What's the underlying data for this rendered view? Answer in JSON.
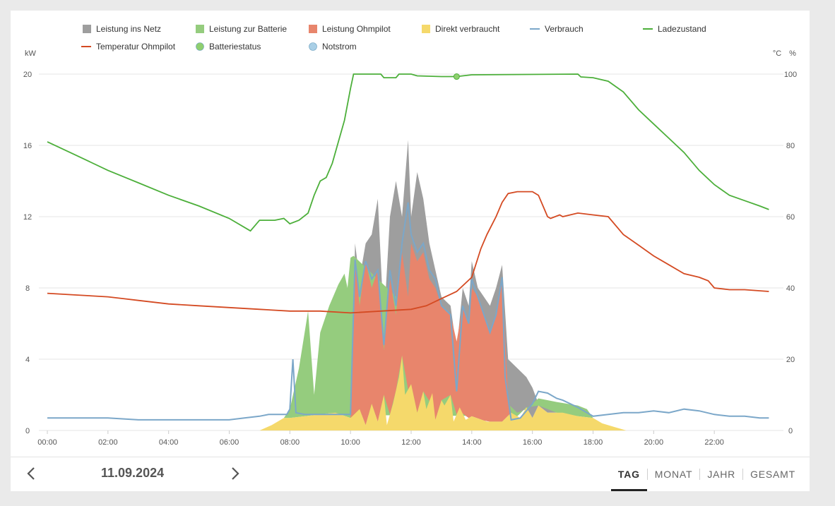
{
  "legend": [
    {
      "label": "Leistung ins Netz",
      "shape": "square",
      "color": "#9e9e9e"
    },
    {
      "label": "Leistung zur Batterie",
      "shape": "square",
      "color": "#95cc7e"
    },
    {
      "label": "Leistung Ohmpilot",
      "shape": "square",
      "color": "#e8856c"
    },
    {
      "label": "Direkt verbraucht",
      "shape": "square",
      "color": "#f5d96b"
    },
    {
      "label": "Verbrauch",
      "shape": "line",
      "color": "#7ba7c9"
    },
    {
      "label": "Ladezustand",
      "shape": "line",
      "color": "#4caf3a"
    },
    {
      "label": "Temperatur Ohmpilot",
      "shape": "line",
      "color": "#d44a22"
    },
    {
      "label": "Batteriestatus",
      "shape": "circle",
      "color": "#8fcf6f"
    },
    {
      "label": "Notstrom",
      "shape": "circle",
      "color": "#a9cfe6"
    }
  ],
  "axes": {
    "left_unit": "kW",
    "right_unit_1": "°C",
    "right_unit_2": "%",
    "left_ticks": [
      "0",
      "4",
      "8",
      "12",
      "16",
      "20"
    ],
    "right_ticks": [
      "0",
      "20",
      "40",
      "60",
      "80",
      "100"
    ],
    "x_ticks": [
      "00:00",
      "02:00",
      "04:00",
      "06:00",
      "08:00",
      "10:00",
      "12:00",
      "14:00",
      "16:00",
      "18:00",
      "20:00",
      "22:00"
    ]
  },
  "chart_data": {
    "type": "area",
    "title": "",
    "x_unit": "hours",
    "ylim_left": [
      0,
      20
    ],
    "ylim_right": [
      0,
      100
    ],
    "direkt_verbraucht": [
      [
        0,
        0
      ],
      [
        7,
        0
      ],
      [
        7.4,
        0.3
      ],
      [
        7.8,
        0.7
      ],
      [
        8,
        0.7
      ],
      [
        8.5,
        0.8
      ],
      [
        9,
        0.9
      ],
      [
        9.5,
        1.0
      ],
      [
        10,
        0.7
      ],
      [
        10.3,
        1.2
      ],
      [
        10.5,
        0.3
      ],
      [
        10.7,
        1.5
      ],
      [
        10.9,
        0.5
      ],
      [
        11.1,
        2.0
      ],
      [
        11.2,
        0.3
      ],
      [
        11.4,
        1.5
      ],
      [
        11.6,
        3.0
      ],
      [
        11.7,
        4.2
      ],
      [
        11.8,
        2.0
      ],
      [
        12,
        2.6
      ],
      [
        12.2,
        1.0
      ],
      [
        12.4,
        2.2
      ],
      [
        12.5,
        1.2
      ],
      [
        12.7,
        2.1
      ],
      [
        12.8,
        0.6
      ],
      [
        13,
        1.7
      ],
      [
        13.1,
        1.4
      ],
      [
        13.3,
        2.0
      ],
      [
        13.4,
        0.5
      ],
      [
        13.6,
        1.3
      ],
      [
        13.8,
        0.6
      ],
      [
        14,
        0.8
      ],
      [
        14.5,
        0.5
      ],
      [
        15,
        0.5
      ],
      [
        15.3,
        1.0
      ],
      [
        15.6,
        0.7
      ],
      [
        15.8,
        1.3
      ],
      [
        16,
        0.7
      ],
      [
        16.2,
        1.4
      ],
      [
        16.5,
        1.0
      ],
      [
        17,
        1.0
      ],
      [
        17.5,
        0.8
      ],
      [
        18,
        0.7
      ],
      [
        18.3,
        0.4
      ],
      [
        18.7,
        0.2
      ],
      [
        19.1,
        0
      ]
    ],
    "leistung_batterie_top": [
      [
        7.8,
        0.7
      ],
      [
        8,
        1.2
      ],
      [
        8.3,
        3.5
      ],
      [
        8.6,
        6.7
      ],
      [
        8.8,
        2.0
      ],
      [
        9,
        5.5
      ],
      [
        9.3,
        7.0
      ],
      [
        9.6,
        8.2
      ],
      [
        9.8,
        8.8
      ],
      [
        9.9,
        8.0
      ],
      [
        10,
        9.7
      ],
      [
        10.1,
        9.8
      ],
      [
        15.5,
        1.0
      ],
      [
        15.8,
        1.2
      ],
      [
        16.2,
        1.8
      ],
      [
        16.8,
        1.6
      ],
      [
        17.5,
        1.4
      ],
      [
        17.8,
        1.2
      ],
      [
        18,
        0.7
      ]
    ],
    "leistung_ohmpilot_top": [
      [
        10,
        0.8
      ],
      [
        10.15,
        9.6
      ],
      [
        10.3,
        7.0
      ],
      [
        10.5,
        9.5
      ],
      [
        10.7,
        8.0
      ],
      [
        10.9,
        9.0
      ],
      [
        11.1,
        4.5
      ],
      [
        11.3,
        8.5
      ],
      [
        11.5,
        6.5
      ],
      [
        11.7,
        10.0
      ],
      [
        11.9,
        7.5
      ],
      [
        12,
        10.5
      ],
      [
        12.2,
        9.5
      ],
      [
        12.4,
        10.0
      ],
      [
        12.6,
        8.5
      ],
      [
        12.8,
        8.0
      ],
      [
        13,
        7.0
      ],
      [
        13.3,
        6.5
      ],
      [
        13.5,
        5.0
      ],
      [
        13.7,
        7.0
      ],
      [
        13.9,
        6.0
      ],
      [
        14,
        8.0
      ],
      [
        14.2,
        7.5
      ],
      [
        14.4,
        6.5
      ],
      [
        14.6,
        5.5
      ],
      [
        14.8,
        6.5
      ],
      [
        15,
        8.5
      ],
      [
        15.2,
        2.0
      ],
      [
        15.3,
        1.0
      ]
    ],
    "leistung_netz_top": [
      [
        10,
        0.9
      ],
      [
        10.15,
        10.5
      ],
      [
        10.3,
        8.5
      ],
      [
        10.5,
        10.5
      ],
      [
        10.7,
        11.0
      ],
      [
        10.9,
        13.0
      ],
      [
        11.1,
        6.0
      ],
      [
        11.3,
        12.0
      ],
      [
        11.5,
        14.0
      ],
      [
        11.7,
        12.0
      ],
      [
        11.9,
        16.3
      ],
      [
        12,
        12.0
      ],
      [
        12.2,
        14.5
      ],
      [
        12.4,
        13.0
      ],
      [
        12.6,
        10.5
      ],
      [
        12.8,
        9.0
      ],
      [
        13,
        7.5
      ],
      [
        13.3,
        7.0
      ],
      [
        13.5,
        4.5
      ],
      [
        13.7,
        8.0
      ],
      [
        13.9,
        7.0
      ],
      [
        14,
        9.5
      ],
      [
        14.2,
        8.0
      ],
      [
        14.4,
        7.5
      ],
      [
        14.6,
        7.0
      ],
      [
        14.8,
        8.0
      ],
      [
        15,
        9.3
      ],
      [
        15.2,
        4.0
      ],
      [
        15.5,
        3.5
      ],
      [
        15.8,
        3.0
      ],
      [
        16,
        2.4
      ],
      [
        16.2,
        1.5
      ],
      [
        16.5,
        1.3
      ],
      [
        17,
        1.2
      ]
    ],
    "verbrauch": [
      [
        0,
        0.7
      ],
      [
        0.5,
        0.7
      ],
      [
        1,
        0.7
      ],
      [
        2,
        0.7
      ],
      [
        3,
        0.6
      ],
      [
        4,
        0.6
      ],
      [
        5,
        0.6
      ],
      [
        6,
        0.6
      ],
      [
        6.5,
        0.7
      ],
      [
        7,
        0.8
      ],
      [
        7.3,
        0.9
      ],
      [
        7.6,
        0.9
      ],
      [
        7.9,
        0.9
      ],
      [
        8,
        1.2
      ],
      [
        8.1,
        4.0
      ],
      [
        8.2,
        1.0
      ],
      [
        8.5,
        0.9
      ],
      [
        9,
        0.9
      ],
      [
        9.5,
        0.9
      ],
      [
        10,
        0.9
      ],
      [
        10.15,
        9.6
      ],
      [
        10.3,
        7.5
      ],
      [
        10.5,
        9.5
      ],
      [
        10.7,
        8.5
      ],
      [
        10.9,
        9.0
      ],
      [
        11.1,
        4.8
      ],
      [
        11.3,
        9.0
      ],
      [
        11.5,
        7.0
      ],
      [
        11.7,
        10.5
      ],
      [
        11.9,
        12.8
      ],
      [
        12,
        11.0
      ],
      [
        12.2,
        10.0
      ],
      [
        12.4,
        10.5
      ],
      [
        12.6,
        9.0
      ],
      [
        12.8,
        8.5
      ],
      [
        13,
        7.0
      ],
      [
        13.3,
        6.5
      ],
      [
        13.5,
        2.2
      ],
      [
        13.7,
        7.0
      ],
      [
        13.9,
        6.0
      ],
      [
        14,
        8.5
      ],
      [
        14.2,
        7.5
      ],
      [
        14.4,
        6.5
      ],
      [
        14.6,
        5.5
      ],
      [
        14.8,
        6.5
      ],
      [
        15,
        8.6
      ],
      [
        15.1,
        3.0
      ],
      [
        15.3,
        0.6
      ],
      [
        15.6,
        0.7
      ],
      [
        16,
        1.5
      ],
      [
        16.2,
        2.2
      ],
      [
        16.5,
        2.1
      ],
      [
        16.8,
        1.8
      ],
      [
        17,
        1.7
      ],
      [
        17.5,
        1.3
      ],
      [
        18,
        0.8
      ],
      [
        18.5,
        0.9
      ],
      [
        19,
        1.0
      ],
      [
        19.5,
        1.0
      ],
      [
        20,
        1.1
      ],
      [
        20.5,
        1.0
      ],
      [
        21,
        1.2
      ],
      [
        21.5,
        1.1
      ],
      [
        22,
        0.9
      ],
      [
        22.5,
        0.8
      ],
      [
        23,
        0.8
      ],
      [
        23.5,
        0.7
      ],
      [
        23.8,
        0.7
      ]
    ],
    "ladezustand": [
      [
        0,
        81
      ],
      [
        1,
        77
      ],
      [
        2,
        73
      ],
      [
        3,
        69.5
      ],
      [
        4,
        66
      ],
      [
        5,
        63
      ],
      [
        6,
        59.5
      ],
      [
        6.7,
        56
      ],
      [
        7,
        59
      ],
      [
        7.5,
        59
      ],
      [
        7.8,
        59.5
      ],
      [
        8,
        58
      ],
      [
        8.3,
        59
      ],
      [
        8.6,
        61
      ],
      [
        8.8,
        66
      ],
      [
        9,
        70
      ],
      [
        9.2,
        71
      ],
      [
        9.4,
        75
      ],
      [
        9.6,
        81
      ],
      [
        9.8,
        87
      ],
      [
        10,
        96
      ],
      [
        10.1,
        100
      ],
      [
        11,
        100
      ],
      [
        11.1,
        99
      ],
      [
        11.5,
        99
      ],
      [
        11.6,
        100
      ],
      [
        12,
        100
      ],
      [
        12.2,
        99.5
      ],
      [
        13,
        99.3
      ],
      [
        13.5,
        99.3
      ],
      [
        14,
        99.8
      ],
      [
        17.5,
        100
      ],
      [
        17.6,
        99.2
      ],
      [
        18,
        99
      ],
      [
        18.5,
        98
      ],
      [
        19,
        95
      ],
      [
        19.5,
        90
      ],
      [
        20,
        86
      ],
      [
        20.5,
        82
      ],
      [
        21,
        78
      ],
      [
        21.5,
        73
      ],
      [
        22,
        69
      ],
      [
        22.5,
        66
      ],
      [
        23,
        64.5
      ],
      [
        23.5,
        63
      ],
      [
        23.8,
        62
      ]
    ],
    "temperatur_ohmpilot": [
      [
        0,
        38.5
      ],
      [
        1,
        38
      ],
      [
        2,
        37.5
      ],
      [
        2.5,
        37
      ],
      [
        3,
        36.5
      ],
      [
        4,
        35.5
      ],
      [
        5,
        35
      ],
      [
        6,
        34.5
      ],
      [
        7,
        34
      ],
      [
        8,
        33.5
      ],
      [
        9,
        33.5
      ],
      [
        10,
        33
      ],
      [
        11,
        33.5
      ],
      [
        12,
        34
      ],
      [
        12.5,
        35
      ],
      [
        13,
        37
      ],
      [
        13.5,
        39
      ],
      [
        14,
        43
      ],
      [
        14.3,
        51
      ],
      [
        14.5,
        55
      ],
      [
        14.8,
        60
      ],
      [
        15,
        64
      ],
      [
        15.2,
        66.5
      ],
      [
        15.5,
        67
      ],
      [
        16,
        67
      ],
      [
        16.2,
        66
      ],
      [
        16.4,
        62
      ],
      [
        16.5,
        60
      ],
      [
        16.6,
        59.5
      ],
      [
        16.9,
        60.5
      ],
      [
        17,
        60
      ],
      [
        17.5,
        61
      ],
      [
        18,
        60.5
      ],
      [
        18.5,
        60
      ],
      [
        19,
        55
      ],
      [
        19.5,
        52
      ],
      [
        20,
        49
      ],
      [
        20.5,
        46.5
      ],
      [
        21,
        44
      ],
      [
        21.5,
        43
      ],
      [
        21.8,
        42
      ],
      [
        22,
        40
      ],
      [
        22.5,
        39.5
      ],
      [
        23,
        39.5
      ],
      [
        23.8,
        39
      ]
    ],
    "batteriestatus_marker": [
      13.5,
      99.3
    ]
  },
  "footer": {
    "date": "11.09.2024",
    "tabs": [
      "TAG",
      "MONAT",
      "JAHR",
      "GESAMT"
    ],
    "active_tab": "TAG"
  },
  "colors": {
    "grid": "#e6e6e6",
    "axis_text": "#555555",
    "arrow": "#555555"
  }
}
